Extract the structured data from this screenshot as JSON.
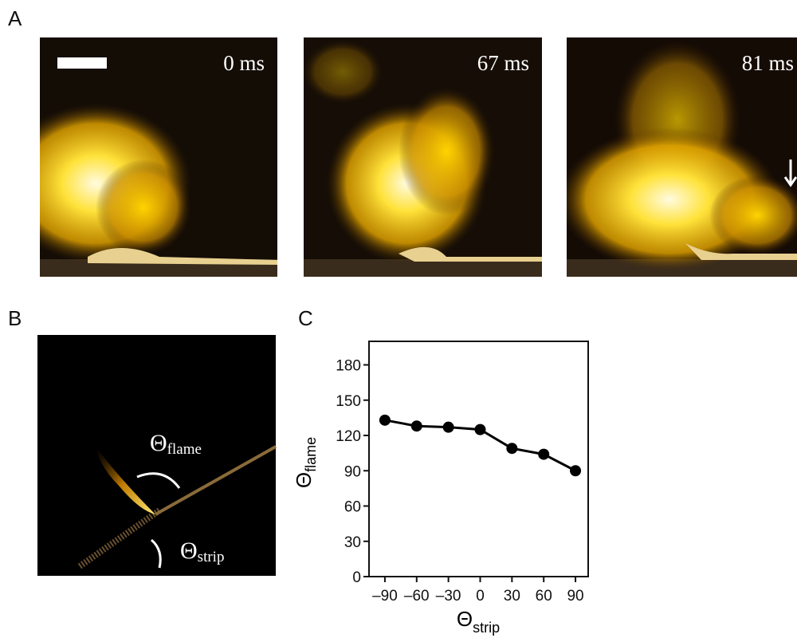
{
  "panel_labels": [
    "A",
    "B",
    "C"
  ],
  "photos": [
    {
      "label": "0 ms"
    },
    {
      "label": "67 ms"
    },
    {
      "label": "81 ms"
    }
  ],
  "diagram": {
    "flame": {
      "symbol": "Θ",
      "subscript": "flame"
    },
    "strip": {
      "symbol": "Θ",
      "subscript": "strip"
    }
  },
  "chart_data": {
    "type": "line",
    "x": [
      -90,
      -60,
      -30,
      0,
      30,
      60,
      90
    ],
    "values": [
      133,
      128,
      127,
      125,
      109,
      104,
      90
    ],
    "color": "#000000",
    "xlabel": {
      "symbol": "Θ",
      "subscript": "strip"
    },
    "ylabel": {
      "symbol": "Θ",
      "subscript": "flame"
    },
    "xlim": [
      -105,
      102
    ],
    "ylim": [
      0,
      200
    ],
    "xticks": [
      {
        "value": -90,
        "label": "–90"
      },
      {
        "value": -60,
        "label": "–60"
      },
      {
        "value": -30,
        "label": "–30"
      },
      0,
      30,
      60,
      90
    ],
    "yticks": [
      0,
      30,
      60,
      90,
      120,
      150,
      180
    ]
  }
}
